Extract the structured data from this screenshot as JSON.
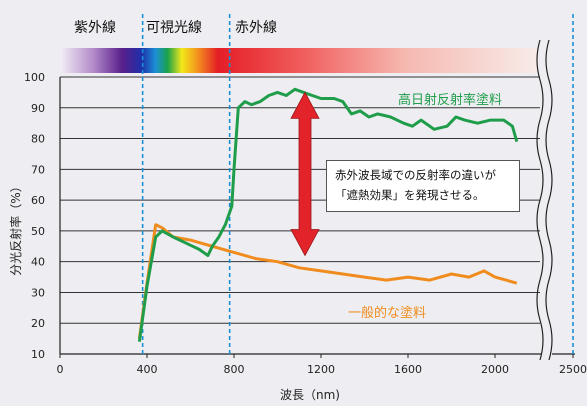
{
  "chart_data": {
    "type": "line",
    "xlabel": "波長（nm)",
    "ylabel": "分光反射率（%）",
    "xlim": [
      0,
      2500
    ],
    "ylim": [
      10,
      100
    ],
    "x_ticks": [
      "0",
      "400",
      "800",
      "1200",
      "1600",
      "2000",
      "2500"
    ],
    "y_ticks": [
      "10",
      "20",
      "30",
      "40",
      "50",
      "60",
      "70",
      "80",
      "90",
      "100"
    ],
    "grid": "horizontal",
    "axis_break": [
      2150,
      2450
    ],
    "bands": [
      {
        "name": "紫外線",
        "range": [
          0,
          380
        ]
      },
      {
        "name": "可視光線",
        "range": [
          380,
          780
        ]
      },
      {
        "name": "赤外線",
        "range": [
          780,
          2500
        ]
      }
    ],
    "band_boundaries": [
      380,
      780,
      2500
    ],
    "annotation": {
      "lines": [
        "赤外波長域での反射率の違いが",
        "「遮熱効果」を発現させる。"
      ]
    },
    "series": [
      {
        "name": "高日射反射率塗料",
        "color": "#1f9d4a",
        "x": [
          365,
          400,
          440,
          470,
          520,
          580,
          640,
          680,
          700,
          730,
          760,
          790,
          800,
          820,
          850,
          880,
          920,
          960,
          1000,
          1040,
          1080,
          1120,
          1160,
          1200,
          1260,
          1300,
          1340,
          1380,
          1420,
          1460,
          1520,
          1580,
          1620,
          1660,
          1720,
          1780,
          1820,
          1860,
          1920,
          1980,
          2040,
          2080,
          2100
        ],
        "y": [
          14,
          32,
          48,
          50,
          48,
          46,
          44,
          42,
          45,
          48,
          52,
          58,
          70,
          90,
          92,
          91,
          92,
          94,
          95,
          94,
          96,
          95,
          94,
          93,
          93,
          92,
          88,
          89,
          87,
          88,
          87,
          85,
          84,
          86,
          83,
          84,
          87,
          86,
          85,
          86,
          86,
          84,
          79
        ]
      },
      {
        "name": "一般的な塗料",
        "color": "#f08c1e",
        "x": [
          365,
          400,
          440,
          470,
          520,
          600,
          700,
          800,
          900,
          1000,
          1100,
          1200,
          1300,
          1400,
          1500,
          1600,
          1700,
          1800,
          1880,
          1950,
          2000,
          2050,
          2100
        ],
        "y": [
          15,
          33,
          52,
          51,
          48,
          47,
          45,
          43,
          41,
          40,
          38,
          37,
          36,
          35,
          34,
          35,
          34,
          36,
          35,
          37,
          35,
          34,
          33
        ]
      }
    ]
  }
}
